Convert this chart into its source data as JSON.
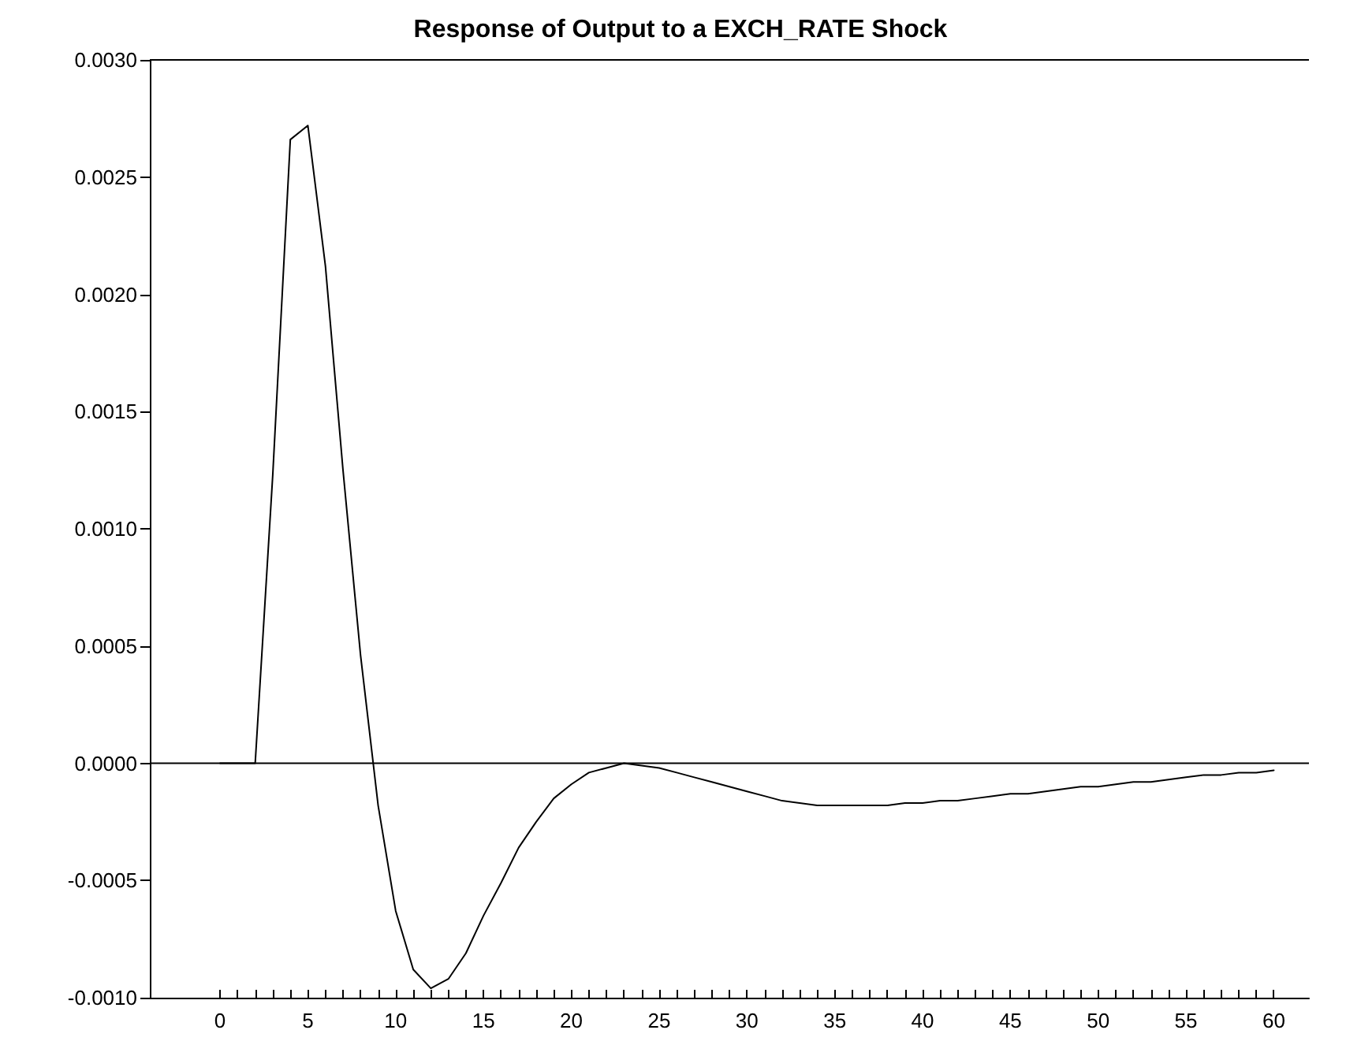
{
  "chart_data": {
    "type": "line",
    "title": "Response of Output to a EXCH_RATE Shock",
    "x": [
      0,
      1,
      2,
      3,
      4,
      5,
      6,
      7,
      8,
      9,
      10,
      11,
      12,
      13,
      14,
      15,
      16,
      17,
      18,
      19,
      20,
      21,
      22,
      23,
      24,
      25,
      26,
      27,
      28,
      29,
      30,
      31,
      32,
      33,
      34,
      35,
      36,
      37,
      38,
      39,
      40,
      41,
      42,
      43,
      44,
      45,
      46,
      47,
      48,
      49,
      50,
      51,
      52,
      53,
      54,
      55,
      56,
      57,
      58,
      59,
      60
    ],
    "series": [
      {
        "color": "#000000",
        "values": [
          0,
          0,
          0,
          0.00123,
          0.00266,
          0.00272,
          0.00212,
          0.00125,
          0.00046,
          -0.00018,
          -0.00063,
          -0.00088,
          -0.00096,
          -0.00092,
          -0.00081,
          -0.00065,
          -0.00051,
          -0.00036,
          -0.00025,
          -0.00015,
          -9e-05,
          -4e-05,
          -2e-05,
          0,
          -1e-05,
          -2e-05,
          -4e-05,
          -6e-05,
          -8e-05,
          -0.0001,
          -0.00012,
          -0.00014,
          -0.00016,
          -0.00017,
          -0.00018,
          -0.00018,
          -0.00018,
          -0.00018,
          -0.00018,
          -0.00017,
          -0.00017,
          -0.00016,
          -0.00016,
          -0.00015,
          -0.00014,
          -0.00013,
          -0.00013,
          -0.00012,
          -0.00011,
          -0.0001,
          -0.0001,
          -9e-05,
          -8e-05,
          -8e-05,
          -7e-05,
          -6e-05,
          -5e-05,
          -5e-05,
          -4e-05,
          -4e-05,
          -3e-05
        ]
      }
    ],
    "xlim": [
      -4,
      62
    ],
    "xticks": [
      0,
      {
        "value": 1,
        "label": null
      },
      {
        "value": 2,
        "label": null
      },
      {
        "value": 3,
        "label": null
      },
      {
        "value": 4,
        "label": null
      },
      5,
      {
        "value": 6,
        "label": null
      },
      {
        "value": 7,
        "label": null
      },
      {
        "value": 8,
        "label": null
      },
      {
        "value": 9,
        "label": null
      },
      10,
      {
        "value": 11,
        "label": null
      },
      {
        "value": 12,
        "label": null
      },
      {
        "value": 13,
        "label": null
      },
      {
        "value": 14,
        "label": null
      },
      15,
      {
        "value": 16,
        "label": null
      },
      {
        "value": 17,
        "label": null
      },
      {
        "value": 18,
        "label": null
      },
      {
        "value": 19,
        "label": null
      },
      20,
      {
        "value": 21,
        "label": null
      },
      {
        "value": 22,
        "label": null
      },
      {
        "value": 23,
        "label": null
      },
      {
        "value": 24,
        "label": null
      },
      25,
      {
        "value": 26,
        "label": null
      },
      {
        "value": 27,
        "label": null
      },
      {
        "value": 28,
        "label": null
      },
      {
        "value": 29,
        "label": null
      },
      30,
      {
        "value": 31,
        "label": null
      },
      {
        "value": 32,
        "label": null
      },
      {
        "value": 33,
        "label": null
      },
      {
        "value": 34,
        "label": null
      },
      35,
      {
        "value": 36,
        "label": null
      },
      {
        "value": 37,
        "label": null
      },
      {
        "value": 38,
        "label": null
      },
      {
        "value": 39,
        "label": null
      },
      40,
      {
        "value": 41,
        "label": null
      },
      {
        "value": 42,
        "label": null
      },
      {
        "value": 43,
        "label": null
      },
      {
        "value": 44,
        "label": null
      },
      45,
      {
        "value": 46,
        "label": null
      },
      {
        "value": 47,
        "label": null
      },
      {
        "value": 48,
        "label": null
      },
      {
        "value": 49,
        "label": null
      },
      50,
      {
        "value": 51,
        "label": null
      },
      {
        "value": 52,
        "label": null
      },
      {
        "value": 53,
        "label": null
      },
      {
        "value": 54,
        "label": null
      },
      55,
      {
        "value": 56,
        "label": null
      },
      {
        "value": 57,
        "label": null
      },
      {
        "value": 58,
        "label": null
      },
      {
        "value": 59,
        "label": null
      },
      60
    ],
    "ylim": [
      -0.001,
      0.003
    ],
    "yticks": [
      {
        "value": -0.001,
        "label": "-0.0010"
      },
      {
        "value": -0.0005,
        "label": "-0.0005"
      },
      {
        "value": 0,
        "label": "0.0000"
      },
      {
        "value": 0.0005,
        "label": "0.0005"
      },
      {
        "value": 0.001,
        "label": "0.0010"
      },
      {
        "value": 0.0015,
        "label": "0.0015"
      },
      {
        "value": 0.002,
        "label": "0.0020"
      },
      {
        "value": 0.0025,
        "label": "0.0025"
      },
      {
        "value": 0.003,
        "label": "0.0030"
      }
    ],
    "ref_lines": [
      {
        "axis": "y",
        "value": 0,
        "color": "#000000"
      }
    ],
    "grid": false,
    "marker": "none",
    "line_style": "solid"
  }
}
